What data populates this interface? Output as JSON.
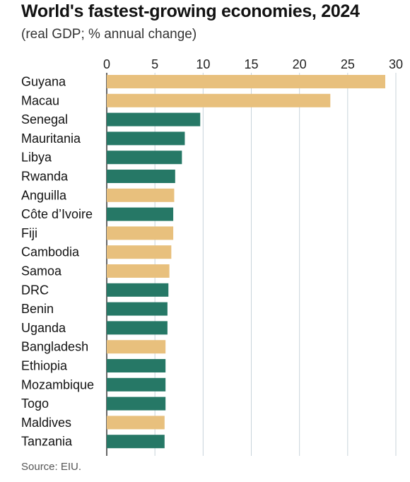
{
  "chart_data": {
    "type": "bar",
    "orientation": "horizontal",
    "title": "World's fastest-growing economies, 2024",
    "subtitle": "(real GDP; % annual change)",
    "source": "Source: EIU.",
    "categories": [
      "Guyana",
      "Macau",
      "Senegal",
      "Mauritania",
      "Libya",
      "Rwanda",
      "Anguilla",
      "Côte d’Ivoire",
      "Fiji",
      "Cambodia",
      "Samoa",
      "DRC",
      "Benin",
      "Uganda",
      "Bangladesh",
      "Ethiopia",
      "Mozambique",
      "Togo",
      "Maldives",
      "Tanzania"
    ],
    "values": [
      28.9,
      23.2,
      9.7,
      8.1,
      7.8,
      7.1,
      7.0,
      6.9,
      6.9,
      6.7,
      6.5,
      6.4,
      6.3,
      6.3,
      6.1,
      6.1,
      6.1,
      6.1,
      6.0,
      6.0
    ],
    "bar_colors": [
      "#e8c07d",
      "#e8c07d",
      "#267866",
      "#267866",
      "#267866",
      "#267866",
      "#e8c07d",
      "#267866",
      "#e8c07d",
      "#e8c07d",
      "#e8c07d",
      "#267866",
      "#267866",
      "#267866",
      "#e8c07d",
      "#267866",
      "#267866",
      "#267866",
      "#e8c07d",
      "#267866"
    ],
    "xlim": [
      0,
      30
    ],
    "xticks": [
      0,
      5,
      10,
      15,
      20,
      25,
      30
    ],
    "xaxis_position": "top",
    "grid": true
  },
  "colors": {
    "gridline": "#c8d3da",
    "axis": "#333333"
  }
}
